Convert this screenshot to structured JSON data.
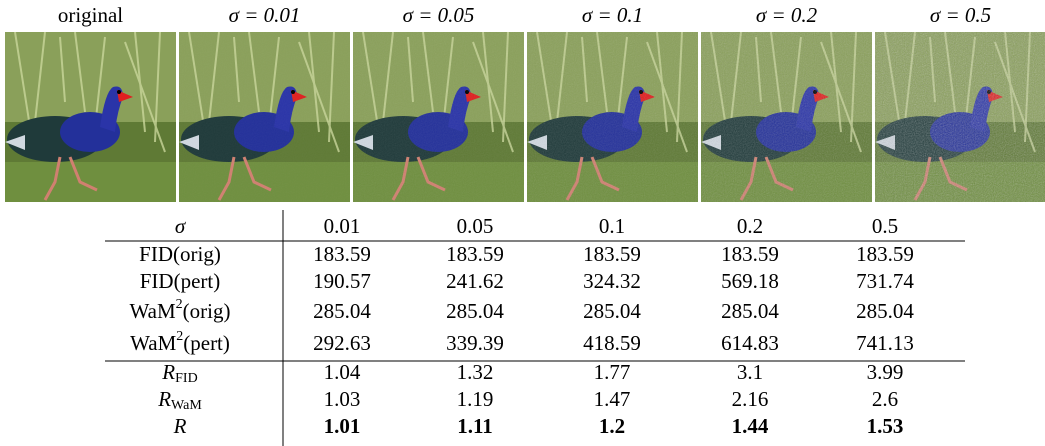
{
  "figure": {
    "images": [
      {
        "label": "original"
      },
      {
        "label": "σ = 0.01"
      },
      {
        "label": "σ = 0.05"
      },
      {
        "label": "σ = 0.1"
      },
      {
        "label": "σ = 0.2"
      },
      {
        "label": "σ = 0.5"
      }
    ]
  },
  "table": {
    "header": [
      "σ",
      "0.01",
      "0.05",
      "0.1",
      "0.2",
      "0.5"
    ],
    "rows": [
      {
        "label": {
          "base": "FID(orig)"
        },
        "cells": [
          "183.59",
          "183.59",
          "183.59",
          "183.59",
          "183.59"
        ]
      },
      {
        "label": {
          "base": "FID(pert)"
        },
        "cells": [
          "190.57",
          "241.62",
          "324.32",
          "569.18",
          "731.74"
        ]
      },
      {
        "label": {
          "base": "WaM",
          "sup": "2",
          "tail": "(orig)"
        },
        "cells": [
          "285.04",
          "285.04",
          "285.04",
          "285.04",
          "285.04"
        ]
      },
      {
        "label": {
          "base": "WaM",
          "sup": "2",
          "tail": "(pert)"
        },
        "cells": [
          "292.63",
          "339.39",
          "418.59",
          "614.83",
          "741.13"
        ]
      },
      {
        "label": {
          "base": "R",
          "sub": "FID"
        },
        "cells": [
          "1.04",
          "1.32",
          "1.77",
          "3.1",
          "3.99"
        ]
      },
      {
        "label": {
          "base": "R",
          "sub": "WaM"
        },
        "cells": [
          "1.03",
          "1.19",
          "1.47",
          "2.16",
          "2.6"
        ]
      },
      {
        "label": {
          "base": "R"
        },
        "cells": [
          "1.01",
          "1.11",
          "1.2",
          "1.44",
          "1.53"
        ],
        "bold": true
      }
    ]
  }
}
